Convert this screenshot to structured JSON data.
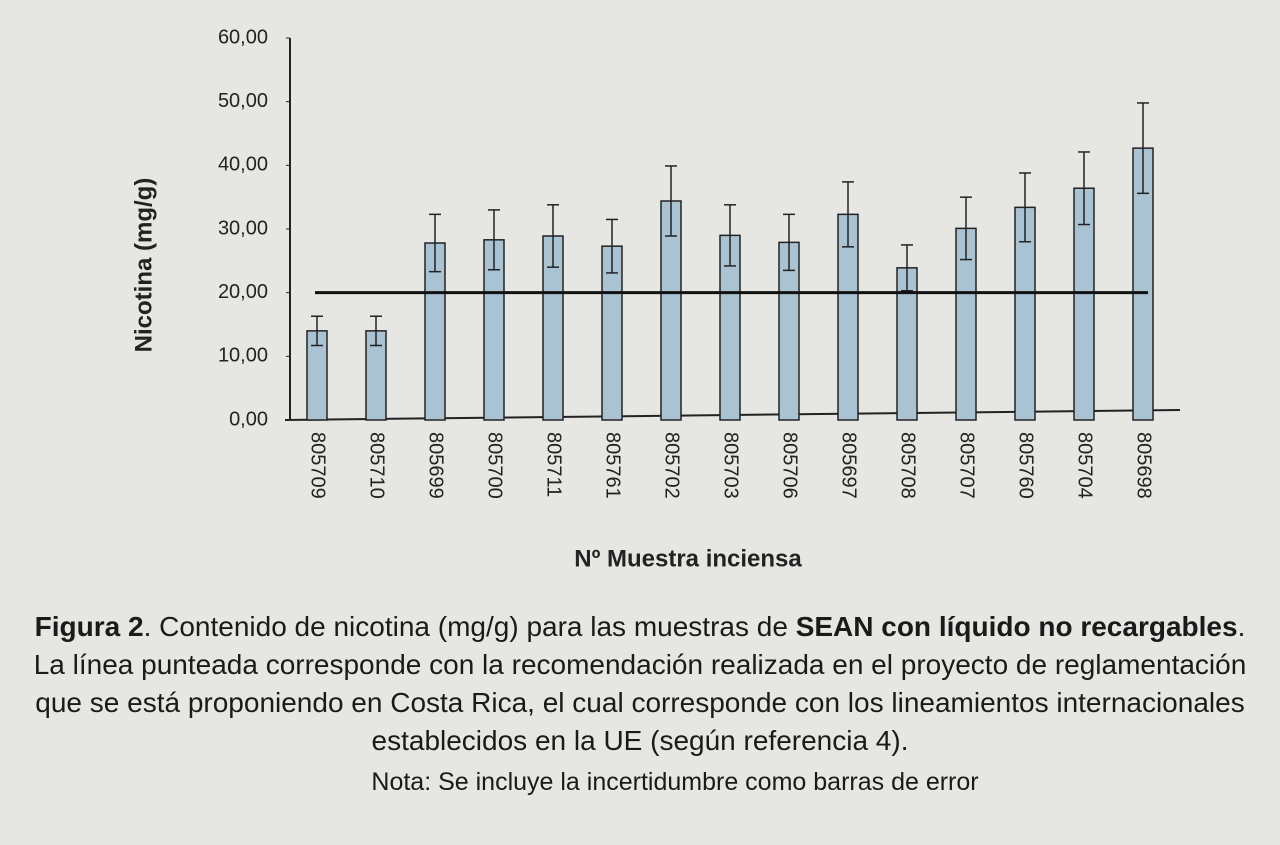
{
  "chart_data": {
    "type": "bar",
    "ylabel": "Nicotina (mg/g)",
    "xlabel": "Nº Muestra inciensa",
    "categories": [
      "805709",
      "805710",
      "805699",
      "805700",
      "805711",
      "805761",
      "805702",
      "805703",
      "805706",
      "805697",
      "805708",
      "805707",
      "805760",
      "805704",
      "805698"
    ],
    "values": [
      14,
      14,
      27.8,
      28.3,
      28.9,
      27.3,
      34.4,
      29,
      27.9,
      32.3,
      23.9,
      30.1,
      33.4,
      36.4,
      42.7
    ],
    "errors": [
      2.3,
      2.3,
      4.5,
      4.7,
      4.9,
      4.2,
      5.5,
      4.8,
      4.4,
      5.1,
      3.6,
      4.9,
      5.4,
      5.7,
      7.1
    ],
    "color": "#a9c3d3",
    "reference_line": 20,
    "ylim": [
      0,
      60
    ],
    "yticks": [
      {
        "value": 0,
        "label": "0,00"
      },
      {
        "value": 10,
        "label": "10,00"
      },
      {
        "value": 20,
        "label": "20,00"
      },
      {
        "value": 30,
        "label": "30,00"
      },
      {
        "value": 40,
        "label": "40,00"
      },
      {
        "value": 50,
        "label": "50,00"
      },
      {
        "value": 60,
        "label": "60,00"
      }
    ]
  },
  "caption": {
    "label": "Figura 2",
    "intro": ". Contenido de nicotina (mg/g) para las muestras de ",
    "emphasis": "SEAN con líquido no recargables",
    "body": ". La línea punteada corresponde con la recomendación realizada en el proyecto de reglamentación que se está proponiendo en Costa Rica, el cual corresponde con los lineamientos internacionales establecidos en la UE (según referencia 4).",
    "note": "Nota: Se incluye la incertidumbre como barras de error"
  }
}
